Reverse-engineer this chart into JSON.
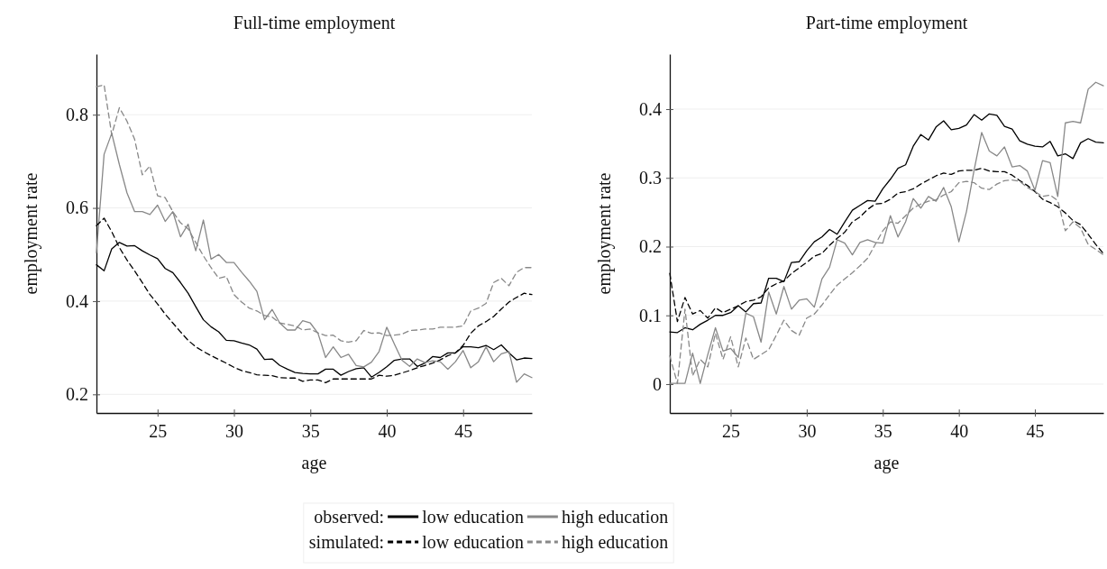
{
  "chart_data": [
    {
      "type": "line",
      "title": "Full-time employment",
      "xlabel": "age",
      "ylabel": "employment rate",
      "x": [
        21,
        21.5,
        22,
        22.5,
        23,
        23.5,
        24,
        24.5,
        25,
        25.5,
        26,
        26.5,
        27,
        27.5,
        28,
        28.5,
        29,
        29.5,
        30,
        30.5,
        31,
        31.5,
        32,
        32.5,
        33,
        33.5,
        34,
        34.5,
        35,
        35.5,
        36,
        36.5,
        37,
        37.5,
        38,
        38.5,
        39,
        39.5,
        40,
        40.5,
        41,
        41.5,
        42,
        42.5,
        43,
        43.5,
        44,
        44.5,
        45,
        45.5,
        46,
        46.5,
        47,
        47.5,
        48,
        48.5,
        49,
        49.5
      ],
      "xlim": [
        21,
        49.5
      ],
      "xticks": [
        25,
        30,
        35,
        40,
        45
      ],
      "ylim": [
        0.16,
        0.93
      ],
      "yticks": [
        0.2,
        0.4,
        0.6,
        0.8
      ],
      "grid": "y",
      "legend": "bottom",
      "series": [
        {
          "name": "low education",
          "color": "#000000",
          "line_style": "solid",
          "values": [
            0.478,
            0.465,
            0.512,
            0.526,
            0.518,
            0.519,
            0.508,
            0.499,
            0.491,
            0.47,
            0.461,
            0.44,
            0.417,
            0.388,
            0.36,
            0.345,
            0.334,
            0.316,
            0.315,
            0.31,
            0.306,
            0.297,
            0.275,
            0.276,
            0.262,
            0.254,
            0.247,
            0.245,
            0.244,
            0.244,
            0.254,
            0.254,
            0.241,
            0.249,
            0.255,
            0.257,
            0.237,
            0.247,
            0.259,
            0.273,
            0.276,
            0.276,
            0.26,
            0.267,
            0.281,
            0.279,
            0.289,
            0.289,
            0.302,
            0.302,
            0.3,
            0.305,
            0.296,
            0.306,
            0.289,
            0.274,
            0.278,
            0.277
          ]
        },
        {
          "name": "high education",
          "color": "#888888",
          "line_style": "solid",
          "values": [
            0.504,
            0.715,
            0.76,
            0.693,
            0.632,
            0.592,
            0.592,
            0.586,
            0.606,
            0.571,
            0.592,
            0.538,
            0.565,
            0.508,
            0.574,
            0.49,
            0.5,
            0.483,
            0.483,
            0.462,
            0.443,
            0.421,
            0.36,
            0.382,
            0.353,
            0.338,
            0.338,
            0.358,
            0.353,
            0.331,
            0.279,
            0.302,
            0.279,
            0.286,
            0.262,
            0.259,
            0.269,
            0.292,
            0.344,
            0.308,
            0.273,
            0.26,
            0.276,
            0.268,
            0.272,
            0.27,
            0.254,
            0.27,
            0.294,
            0.257,
            0.27,
            0.302,
            0.27,
            0.287,
            0.292,
            0.226,
            0.244,
            0.236
          ]
        },
        {
          "name": "low education",
          "color": "#000000",
          "line_style": "dashed",
          "values": [
            0.562,
            0.578,
            0.549,
            0.515,
            0.488,
            0.465,
            0.44,
            0.414,
            0.394,
            0.372,
            0.353,
            0.334,
            0.316,
            0.302,
            0.292,
            0.283,
            0.275,
            0.267,
            0.258,
            0.251,
            0.247,
            0.242,
            0.241,
            0.24,
            0.236,
            0.235,
            0.235,
            0.228,
            0.231,
            0.231,
            0.225,
            0.233,
            0.233,
            0.233,
            0.233,
            0.233,
            0.233,
            0.241,
            0.239,
            0.241,
            0.246,
            0.251,
            0.257,
            0.262,
            0.267,
            0.274,
            0.283,
            0.289,
            0.305,
            0.331,
            0.347,
            0.356,
            0.367,
            0.383,
            0.398,
            0.408,
            0.417,
            0.414
          ]
        },
        {
          "name": "high education",
          "color": "#888888",
          "line_style": "dashed",
          "values": [
            0.86,
            0.864,
            0.757,
            0.815,
            0.786,
            0.747,
            0.671,
            0.69,
            0.626,
            0.622,
            0.592,
            0.568,
            0.555,
            0.526,
            0.497,
            0.472,
            0.449,
            0.453,
            0.414,
            0.398,
            0.385,
            0.379,
            0.369,
            0.366,
            0.353,
            0.35,
            0.347,
            0.338,
            0.34,
            0.332,
            0.326,
            0.327,
            0.315,
            0.312,
            0.315,
            0.337,
            0.331,
            0.332,
            0.326,
            0.327,
            0.329,
            0.337,
            0.338,
            0.34,
            0.34,
            0.344,
            0.344,
            0.344,
            0.347,
            0.379,
            0.385,
            0.395,
            0.44,
            0.449,
            0.433,
            0.462,
            0.472,
            0.472
          ]
        }
      ]
    },
    {
      "type": "line",
      "title": "Part-time employment",
      "xlabel": "age",
      "ylabel": "employment rate",
      "x": [
        21,
        21.5,
        22,
        22.5,
        23,
        23.5,
        24,
        24.5,
        25,
        25.5,
        26,
        26.5,
        27,
        27.5,
        28,
        28.5,
        29,
        29.5,
        30,
        30.5,
        31,
        31.5,
        32,
        32.5,
        33,
        33.5,
        34,
        34.5,
        35,
        35.5,
        36,
        36.5,
        37,
        37.5,
        38,
        38.5,
        39,
        39.5,
        40,
        40.5,
        41,
        41.5,
        42,
        42.5,
        43,
        43.5,
        44,
        44.5,
        45,
        45.5,
        46,
        46.5,
        47,
        47.5,
        48,
        48.5,
        49,
        49.5
      ],
      "xlim": [
        21,
        49.5
      ],
      "xticks": [
        25,
        30,
        35,
        40,
        45
      ],
      "ylim": [
        -0.042,
        0.48
      ],
      "yticks": [
        0,
        0.1,
        0.2,
        0.3,
        0.4
      ],
      "grid": "y",
      "annotations": [
        "observed:",
        "simulated:"
      ],
      "series": [
        {
          "color": "#000000",
          "line_style": "solid",
          "values": [
            0.076,
            0.075,
            0.082,
            0.079,
            0.087,
            0.093,
            0.1,
            0.1,
            0.104,
            0.114,
            0.105,
            0.117,
            0.118,
            0.154,
            0.154,
            0.149,
            0.177,
            0.178,
            0.194,
            0.207,
            0.214,
            0.225,
            0.218,
            0.236,
            0.253,
            0.26,
            0.267,
            0.266,
            0.284,
            0.298,
            0.314,
            0.319,
            0.346,
            0.363,
            0.355,
            0.374,
            0.383,
            0.37,
            0.372,
            0.377,
            0.392,
            0.384,
            0.393,
            0.391,
            0.375,
            0.371,
            0.354,
            0.349,
            0.346,
            0.345,
            0.353,
            0.332,
            0.335,
            0.328,
            0.351,
            0.357,
            0.352,
            0.351
          ]
        },
        {
          "color": "#888888",
          "line_style": "solid",
          "values": [
            0.001,
            0.001,
            0.001,
            0.045,
            0.001,
            0.043,
            0.082,
            0.048,
            0.052,
            0.039,
            0.103,
            0.098,
            0.061,
            0.134,
            0.102,
            0.142,
            0.109,
            0.122,
            0.124,
            0.112,
            0.153,
            0.17,
            0.21,
            0.205,
            0.188,
            0.206,
            0.21,
            0.206,
            0.205,
            0.245,
            0.214,
            0.236,
            0.27,
            0.256,
            0.273,
            0.266,
            0.286,
            0.258,
            0.207,
            0.251,
            0.311,
            0.366,
            0.339,
            0.332,
            0.345,
            0.316,
            0.318,
            0.31,
            0.282,
            0.325,
            0.322,
            0.273,
            0.38,
            0.382,
            0.38,
            0.429,
            0.439,
            0.434
          ]
        },
        {
          "color": "#000000",
          "line_style": "dashed",
          "values": [
            0.161,
            0.091,
            0.126,
            0.102,
            0.107,
            0.096,
            0.111,
            0.104,
            0.109,
            0.114,
            0.12,
            0.122,
            0.127,
            0.14,
            0.146,
            0.15,
            0.161,
            0.169,
            0.177,
            0.186,
            0.19,
            0.202,
            0.212,
            0.221,
            0.236,
            0.243,
            0.254,
            0.262,
            0.263,
            0.269,
            0.278,
            0.28,
            0.284,
            0.291,
            0.297,
            0.303,
            0.307,
            0.305,
            0.31,
            0.311,
            0.311,
            0.314,
            0.31,
            0.309,
            0.309,
            0.304,
            0.296,
            0.289,
            0.28,
            0.269,
            0.264,
            0.258,
            0.249,
            0.238,
            0.232,
            0.218,
            0.203,
            0.19
          ]
        },
        {
          "color": "#888888",
          "line_style": "dashed",
          "values": [
            0.041,
            0.001,
            0.109,
            0.012,
            0.036,
            0.025,
            0.074,
            0.036,
            0.069,
            0.025,
            0.067,
            0.036,
            0.043,
            0.05,
            0.071,
            0.093,
            0.078,
            0.071,
            0.096,
            0.102,
            0.115,
            0.13,
            0.144,
            0.153,
            0.162,
            0.172,
            0.183,
            0.203,
            0.223,
            0.236,
            0.234,
            0.245,
            0.256,
            0.262,
            0.266,
            0.268,
            0.275,
            0.28,
            0.293,
            0.295,
            0.293,
            0.285,
            0.283,
            0.291,
            0.296,
            0.297,
            0.295,
            0.286,
            0.28,
            0.273,
            0.275,
            0.267,
            0.223,
            0.236,
            0.227,
            0.203,
            0.196,
            0.188
          ]
        }
      ]
    }
  ]
}
